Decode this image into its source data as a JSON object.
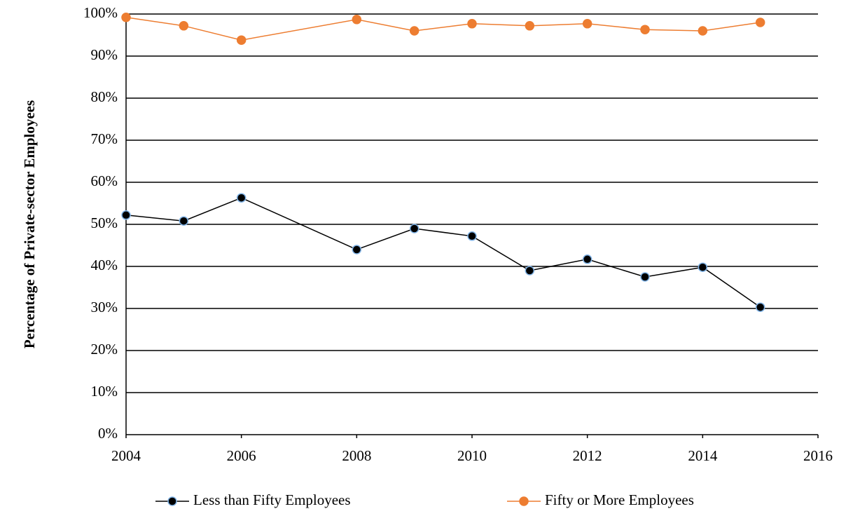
{
  "chart_data": {
    "type": "line",
    "y_label": "Percentage of Private-sector Employees",
    "xlim": [
      2004,
      2016
    ],
    "xticks": [
      2004,
      2006,
      2008,
      2010,
      2012,
      2014,
      2016
    ],
    "ylim": [
      0,
      100
    ],
    "yticks": [
      {
        "value": 0,
        "label": "0%"
      },
      {
        "value": 10,
        "label": "10%"
      },
      {
        "value": 20,
        "label": "20%"
      },
      {
        "value": 30,
        "label": "30%"
      },
      {
        "value": 40,
        "label": "40%"
      },
      {
        "value": 50,
        "label": "50%"
      },
      {
        "value": 60,
        "label": "60%"
      },
      {
        "value": 70,
        "label": "70%"
      },
      {
        "value": 80,
        "label": "80%"
      },
      {
        "value": 90,
        "label": "90%"
      },
      {
        "value": 100,
        "label": "100%"
      }
    ],
    "grid": true,
    "legend": "bottom",
    "x": [
      2004,
      2005,
      2006,
      2008,
      2009,
      2010,
      2011,
      2012,
      2013,
      2014,
      2015
    ],
    "series": [
      {
        "name": "Less than Fifty Employees",
        "color": "#000000",
        "marker_color": "#000000",
        "marker_edge_color": "#7fb2e5",
        "values": [
          52.2,
          50.8,
          56.3,
          44.0,
          49.0,
          47.2,
          39.0,
          41.7,
          37.5,
          39.8,
          30.3
        ]
      },
      {
        "name": "Fifty or More Employees",
        "color": "#ed7d31",
        "marker_color": "#ed7d31",
        "marker_edge_color": "#ed7d31",
        "values": [
          99.2,
          97.2,
          93.8,
          98.7,
          96.0,
          97.7,
          97.2,
          97.7,
          96.3,
          96.0,
          98.0
        ]
      }
    ]
  }
}
